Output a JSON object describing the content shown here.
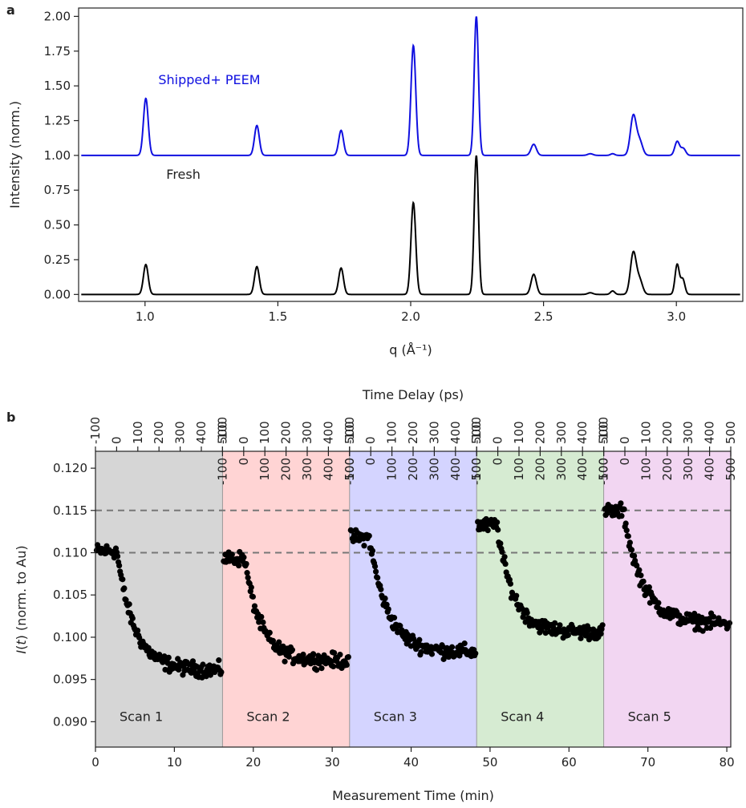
{
  "chart_data": [
    {
      "panel_label": "a",
      "type": "line",
      "xlabel": "q (Å⁻¹)",
      "ylabel": "Intensity (norm.)",
      "xlim": [
        0.75,
        3.25
      ],
      "ylim": [
        -0.05,
        2.06
      ],
      "x_ticks": [
        "1.0",
        "1.5",
        "2.0",
        "2.5",
        "3.0"
      ],
      "y_ticks": [
        "0.00",
        "0.25",
        "0.50",
        "0.75",
        "1.00",
        "1.25",
        "1.50",
        "1.75",
        "2.00"
      ],
      "grid": false,
      "series": [
        {
          "name": "Shipped+ PEEM",
          "color": "#1010e0",
          "baseline": 1.0,
          "peaks": [
            {
              "q": 1.003,
              "height": 0.41,
              "width": 0.009
            },
            {
              "q": 1.421,
              "height": 0.215,
              "width": 0.009
            },
            {
              "q": 1.738,
              "height": 0.18,
              "width": 0.009
            },
            {
              "q": 2.01,
              "height": 0.79,
              "width": 0.009
            },
            {
              "q": 2.247,
              "height": 1.0,
              "width": 0.008
            },
            {
              "q": 2.463,
              "height": 0.08,
              "width": 0.01
            },
            {
              "q": 2.676,
              "height": 0.012,
              "width": 0.01
            },
            {
              "q": 2.76,
              "height": 0.012,
              "width": 0.008
            },
            {
              "q": 2.838,
              "height": 0.285,
              "width": 0.011
            },
            {
              "q": 2.862,
              "height": 0.1,
              "width": 0.011
            },
            {
              "q": 3.003,
              "height": 0.1,
              "width": 0.009
            },
            {
              "q": 3.026,
              "height": 0.05,
              "width": 0.009
            }
          ]
        },
        {
          "name": "Fresh",
          "color": "#000000",
          "baseline": 0.0,
          "peaks": [
            {
              "q": 1.003,
              "height": 0.215,
              "width": 0.009
            },
            {
              "q": 1.421,
              "height": 0.2,
              "width": 0.009
            },
            {
              "q": 1.738,
              "height": 0.19,
              "width": 0.009
            },
            {
              "q": 2.01,
              "height": 0.66,
              "width": 0.009
            },
            {
              "q": 2.247,
              "height": 1.0,
              "width": 0.008
            },
            {
              "q": 2.463,
              "height": 0.145,
              "width": 0.01
            },
            {
              "q": 2.676,
              "height": 0.012,
              "width": 0.01
            },
            {
              "q": 2.76,
              "height": 0.025,
              "width": 0.008
            },
            {
              "q": 2.838,
              "height": 0.3,
              "width": 0.011
            },
            {
              "q": 2.862,
              "height": 0.1,
              "width": 0.011
            },
            {
              "q": 3.003,
              "height": 0.215,
              "width": 0.008
            },
            {
              "q": 3.024,
              "height": 0.11,
              "width": 0.008
            }
          ]
        }
      ],
      "annotations": [
        {
          "text": "Shipped+ PEEM",
          "x": 1.05,
          "y": 1.5
        },
        {
          "text": "Fresh",
          "x": 1.08,
          "y": 0.86
        }
      ]
    },
    {
      "panel_label": "b",
      "type": "scatter",
      "xlabel": "Measurement Time (min)",
      "ylabel": "I(t) (norm. to Au)",
      "top_xlabel": "Time Delay (ps)",
      "xlim": [
        0,
        80.5
      ],
      "ylim": [
        0.087,
        0.122
      ],
      "x_ticks": [
        "0",
        "10",
        "20",
        "30",
        "40",
        "50",
        "60",
        "70",
        "80"
      ],
      "y_ticks": [
        "0.090",
        "0.095",
        "0.100",
        "0.105",
        "0.110",
        "0.115",
        "0.120"
      ],
      "delay_ticks": [
        "-100",
        "0",
        "100",
        "200",
        "300",
        "400",
        "500"
      ],
      "delay_range": [
        -100,
        500
      ],
      "reference_lines": [
        0.11,
        0.115
      ],
      "grid": false,
      "scans": [
        {
          "label": "Scan 1",
          "start": 0.0,
          "end": 16.1,
          "color": "#d6d6d6",
          "pre": 0.1102,
          "post": 0.0961,
          "tau_min": 2.2,
          "t0": 2.7
        },
        {
          "label": "Scan 2",
          "start": 16.1,
          "end": 32.2,
          "color": "#ffd4d4",
          "pre": 0.1093,
          "post": 0.0972,
          "tau_min": 2.0,
          "t0": 2.8
        },
        {
          "label": "Scan 3",
          "start": 32.2,
          "end": 48.3,
          "color": "#d4d4ff",
          "pre": 0.1118,
          "post": 0.0982,
          "tau_min": 2.3,
          "t0": 2.5
        },
        {
          "label": "Scan 4",
          "start": 48.3,
          "end": 64.4,
          "color": "#d6ebd2",
          "pre": 0.1132,
          "post": 0.1006,
          "tau_min": 2.0,
          "t0": 2.6
        },
        {
          "label": "Scan 5",
          "start": 64.4,
          "end": 80.5,
          "color": "#f2d6f2",
          "pre": 0.1149,
          "post": 0.1016,
          "tau_min": 2.4,
          "t0": 2.5
        }
      ]
    }
  ]
}
